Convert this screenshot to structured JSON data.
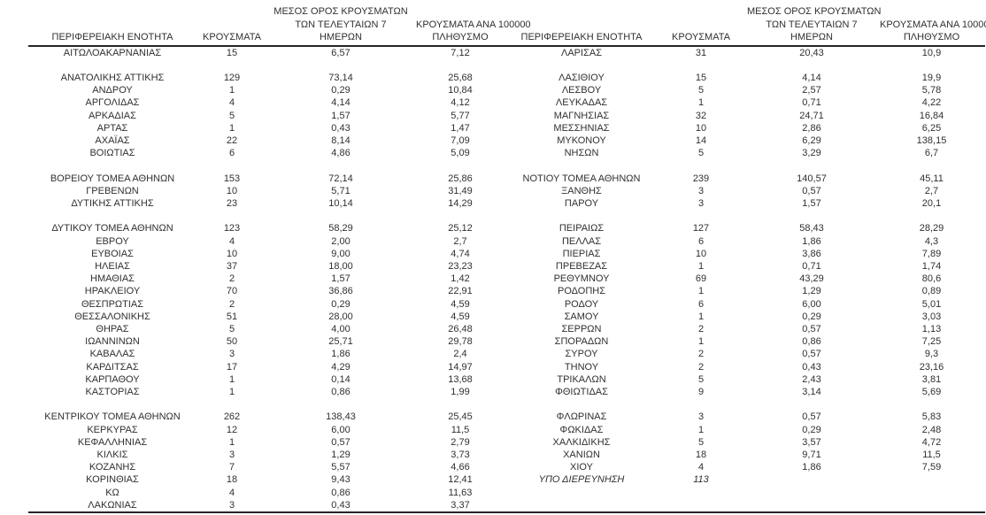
{
  "page": {
    "background": "#ffffff",
    "text_color": "#303030",
    "rule_color": "#262626"
  },
  "table": {
    "headers": {
      "region": "ΠΕΡΙΦΕΡΕΙΑΚΗ ΕΝΟΤΗΤΑ",
      "cases": "ΚΡΟΥΣΜΑΤΑ",
      "avg7_lines": [
        "ΜΕΣΟΣ ΟΡΟΣ ΚΡΟΥΣΜΑΤΩΝ",
        "ΤΩΝ ΤΕΛΕΥΤΑΙΩΝ 7",
        "ΗΜΕΡΩΝ"
      ],
      "per100k_lines": [
        "ΚΡΟΥΣΜΑΤΑ ΑΝΑ 100000",
        "ΠΛΗΘΥΣΜΟ"
      ]
    },
    "rows": [
      {
        "l": [
          "ΑΙΤΩΛΟΑΚΑΡΝΑΝΙΑΣ",
          "15",
          "6,57",
          "7,12"
        ],
        "r": [
          "ΛΑΡΙΣΑΣ",
          "31",
          "20,43",
          "10,9"
        ]
      },
      {
        "l": null,
        "r": null
      },
      {
        "l": [
          "ΑΝΑΤΟΛΙΚΗΣ ΑΤΤΙΚΗΣ",
          "129",
          "73,14",
          "25,68"
        ],
        "r": [
          "ΛΑΣΙΘΙΟΥ",
          "15",
          "4,14",
          "19,9"
        ]
      },
      {
        "l": [
          "ΑΝΔΡΟΥ",
          "1",
          "0,29",
          "10,84"
        ],
        "r": [
          "ΛΕΣΒΟΥ",
          "5",
          "2,57",
          "5,78"
        ]
      },
      {
        "l": [
          "ΑΡΓΟΛΙΔΑΣ",
          "4",
          "4,14",
          "4,12"
        ],
        "r": [
          "ΛΕΥΚΑΔΑΣ",
          "1",
          "0,71",
          "4,22"
        ]
      },
      {
        "l": [
          "ΑΡΚΑΔΙΑΣ",
          "5",
          "1,57",
          "5,77"
        ],
        "r": [
          "ΜΑΓΝΗΣΙΑΣ",
          "32",
          "24,71",
          "16,84"
        ]
      },
      {
        "l": [
          "ΑΡΤΑΣ",
          "1",
          "0,43",
          "1,47"
        ],
        "r": [
          "ΜΕΣΣΗΝΙΑΣ",
          "10",
          "2,86",
          "6,25"
        ]
      },
      {
        "l": [
          "ΑΧΑΪΑΣ",
          "22",
          "8,14",
          "7,09"
        ],
        "r": [
          "ΜΥΚΟΝΟΥ",
          "14",
          "6,29",
          "138,15"
        ]
      },
      {
        "l": [
          "ΒΟΙΩΤΙΑΣ",
          "6",
          "4,86",
          "5,09"
        ],
        "r": [
          "ΝΗΣΩΝ",
          "5",
          "3,29",
          "6,7"
        ]
      },
      {
        "l": null,
        "r": null
      },
      {
        "l": [
          "ΒΟΡΕΙΟΥ ΤΟΜΕΑ ΑΘΗΝΩΝ",
          "153",
          "72,14",
          "25,86"
        ],
        "r": [
          "ΝΟΤΙΟΥ ΤΟΜΕΑ ΑΘΗΝΩΝ",
          "239",
          "140,57",
          "45,11"
        ]
      },
      {
        "l": [
          "ΓΡΕΒΕΝΩΝ",
          "10",
          "5,71",
          "31,49"
        ],
        "r": [
          "ΞΑΝΘΗΣ",
          "3",
          "0,57",
          "2,7"
        ]
      },
      {
        "l": [
          "ΔΥΤΙΚΗΣ ΑΤΤΙΚΗΣ",
          "23",
          "10,14",
          "14,29"
        ],
        "r": [
          "ΠΑΡΟΥ",
          "3",
          "1,57",
          "20,1"
        ]
      },
      {
        "l": null,
        "r": null
      },
      {
        "l": [
          "ΔΥΤΙΚΟΥ ΤΟΜΕΑ ΑΘΗΝΩΝ",
          "123",
          "58,29",
          "25,12"
        ],
        "r": [
          "ΠΕΙΡΑΙΩΣ",
          "127",
          "58,43",
          "28,29"
        ]
      },
      {
        "l": [
          "ΕΒΡΟΥ",
          "4",
          "2,00",
          "2,7"
        ],
        "r": [
          "ΠΕΛΛΑΣ",
          "6",
          "1,86",
          "4,3"
        ]
      },
      {
        "l": [
          "ΕΥΒΟΙΑΣ",
          "10",
          "9,00",
          "4,74"
        ],
        "r": [
          "ΠΙΕΡΙΑΣ",
          "10",
          "3,86",
          "7,89"
        ]
      },
      {
        "l": [
          "ΗΛΕΙΑΣ",
          "37",
          "18,00",
          "23,23"
        ],
        "r": [
          "ΠΡΕΒΕΖΑΣ",
          "1",
          "0,71",
          "1,74"
        ]
      },
      {
        "l": [
          "ΗΜΑΘΙΑΣ",
          "2",
          "1,57",
          "1,42"
        ],
        "r": [
          "ΡΕΘΥΜΝΟΥ",
          "69",
          "43,29",
          "80,6"
        ]
      },
      {
        "l": [
          "ΗΡΑΚΛΕΙΟΥ",
          "70",
          "36,86",
          "22,91"
        ],
        "r": [
          "ΡΟΔΟΠΗΣ",
          "1",
          "1,29",
          "0,89"
        ]
      },
      {
        "l": [
          "ΘΕΣΠΡΩΤΙΑΣ",
          "2",
          "0,29",
          "4,59"
        ],
        "r": [
          "ΡΟΔΟΥ",
          "6",
          "6,00",
          "5,01"
        ]
      },
      {
        "l": [
          "ΘΕΣΣΑΛΟΝΙΚΗΣ",
          "51",
          "28,00",
          "4,59"
        ],
        "r": [
          "ΣΑΜΟΥ",
          "1",
          "0,29",
          "3,03"
        ]
      },
      {
        "l": [
          "ΘΗΡΑΣ",
          "5",
          "4,00",
          "26,48"
        ],
        "r": [
          "ΣΕΡΡΩΝ",
          "2",
          "0,57",
          "1,13"
        ]
      },
      {
        "l": [
          "ΙΩΑΝΝΙΝΩΝ",
          "50",
          "25,71",
          "29,78"
        ],
        "r": [
          "ΣΠΟΡΑΔΩΝ",
          "1",
          "0,86",
          "7,25"
        ]
      },
      {
        "l": [
          "ΚΑΒΑΛΑΣ",
          "3",
          "1,86",
          "2,4"
        ],
        "r": [
          "ΣΥΡΟΥ",
          "2",
          "0,57",
          "9,3"
        ]
      },
      {
        "l": [
          "ΚΑΡΔΙΤΣΑΣ",
          "17",
          "4,29",
          "14,97"
        ],
        "r": [
          "ΤΗΝΟΥ",
          "2",
          "0,43",
          "23,16"
        ]
      },
      {
        "l": [
          "ΚΑΡΠΑΘΟΥ",
          "1",
          "0,14",
          "13,68"
        ],
        "r": [
          "ΤΡΙΚΑΛΩΝ",
          "5",
          "2,43",
          "3,81"
        ]
      },
      {
        "l": [
          "ΚΑΣΤΟΡΙΑΣ",
          "1",
          "0,86",
          "1,99"
        ],
        "r": [
          "ΦΘΙΩΤΙΔΑΣ",
          "9",
          "3,14",
          "5,69"
        ]
      },
      {
        "l": null,
        "r": null
      },
      {
        "l": [
          "ΚΕΝΤΡΙΚΟΥ ΤΟΜΕΑ ΑΘΗΝΩΝ",
          "262",
          "138,43",
          "25,45"
        ],
        "r": [
          "ΦΛΩΡΙΝΑΣ",
          "3",
          "0,57",
          "5,83"
        ]
      },
      {
        "l": [
          "ΚΕΡΚΥΡΑΣ",
          "12",
          "6,00",
          "11,5"
        ],
        "r": [
          "ΦΩΚΙΔΑΣ",
          "1",
          "0,29",
          "2,48"
        ]
      },
      {
        "l": [
          "ΚΕΦΑΛΛΗΝΙΑΣ",
          "1",
          "0,57",
          "2,79"
        ],
        "r": [
          "ΧΑΛΚΙΔΙΚΗΣ",
          "5",
          "3,57",
          "4,72"
        ]
      },
      {
        "l": [
          "ΚΙΛΚΙΣ",
          "3",
          "1,29",
          "3,73"
        ],
        "r": [
          "ΧΑΝΙΩΝ",
          "18",
          "9,71",
          "11,5"
        ]
      },
      {
        "l": [
          "ΚΟΖΑΝΗΣ",
          "7",
          "5,57",
          "4,66"
        ],
        "r": [
          "ΧΙΟΥ",
          "4",
          "1,86",
          "7,59"
        ]
      },
      {
        "l": [
          "ΚΟΡΙΝΘΙΑΣ",
          "18",
          "9,43",
          "12,41"
        ],
        "r": [
          "ΥΠΟ ΔΙΕΡΕΥΝΗΣΗ",
          "113",
          "",
          ""
        ],
        "r_italic": true
      },
      {
        "l": [
          "ΚΩ",
          "4",
          "0,86",
          "11,63"
        ],
        "r": null
      },
      {
        "l": [
          "ΛΑΚΩΝΙΑΣ",
          "3",
          "0,43",
          "3,37"
        ],
        "r": null
      }
    ]
  }
}
